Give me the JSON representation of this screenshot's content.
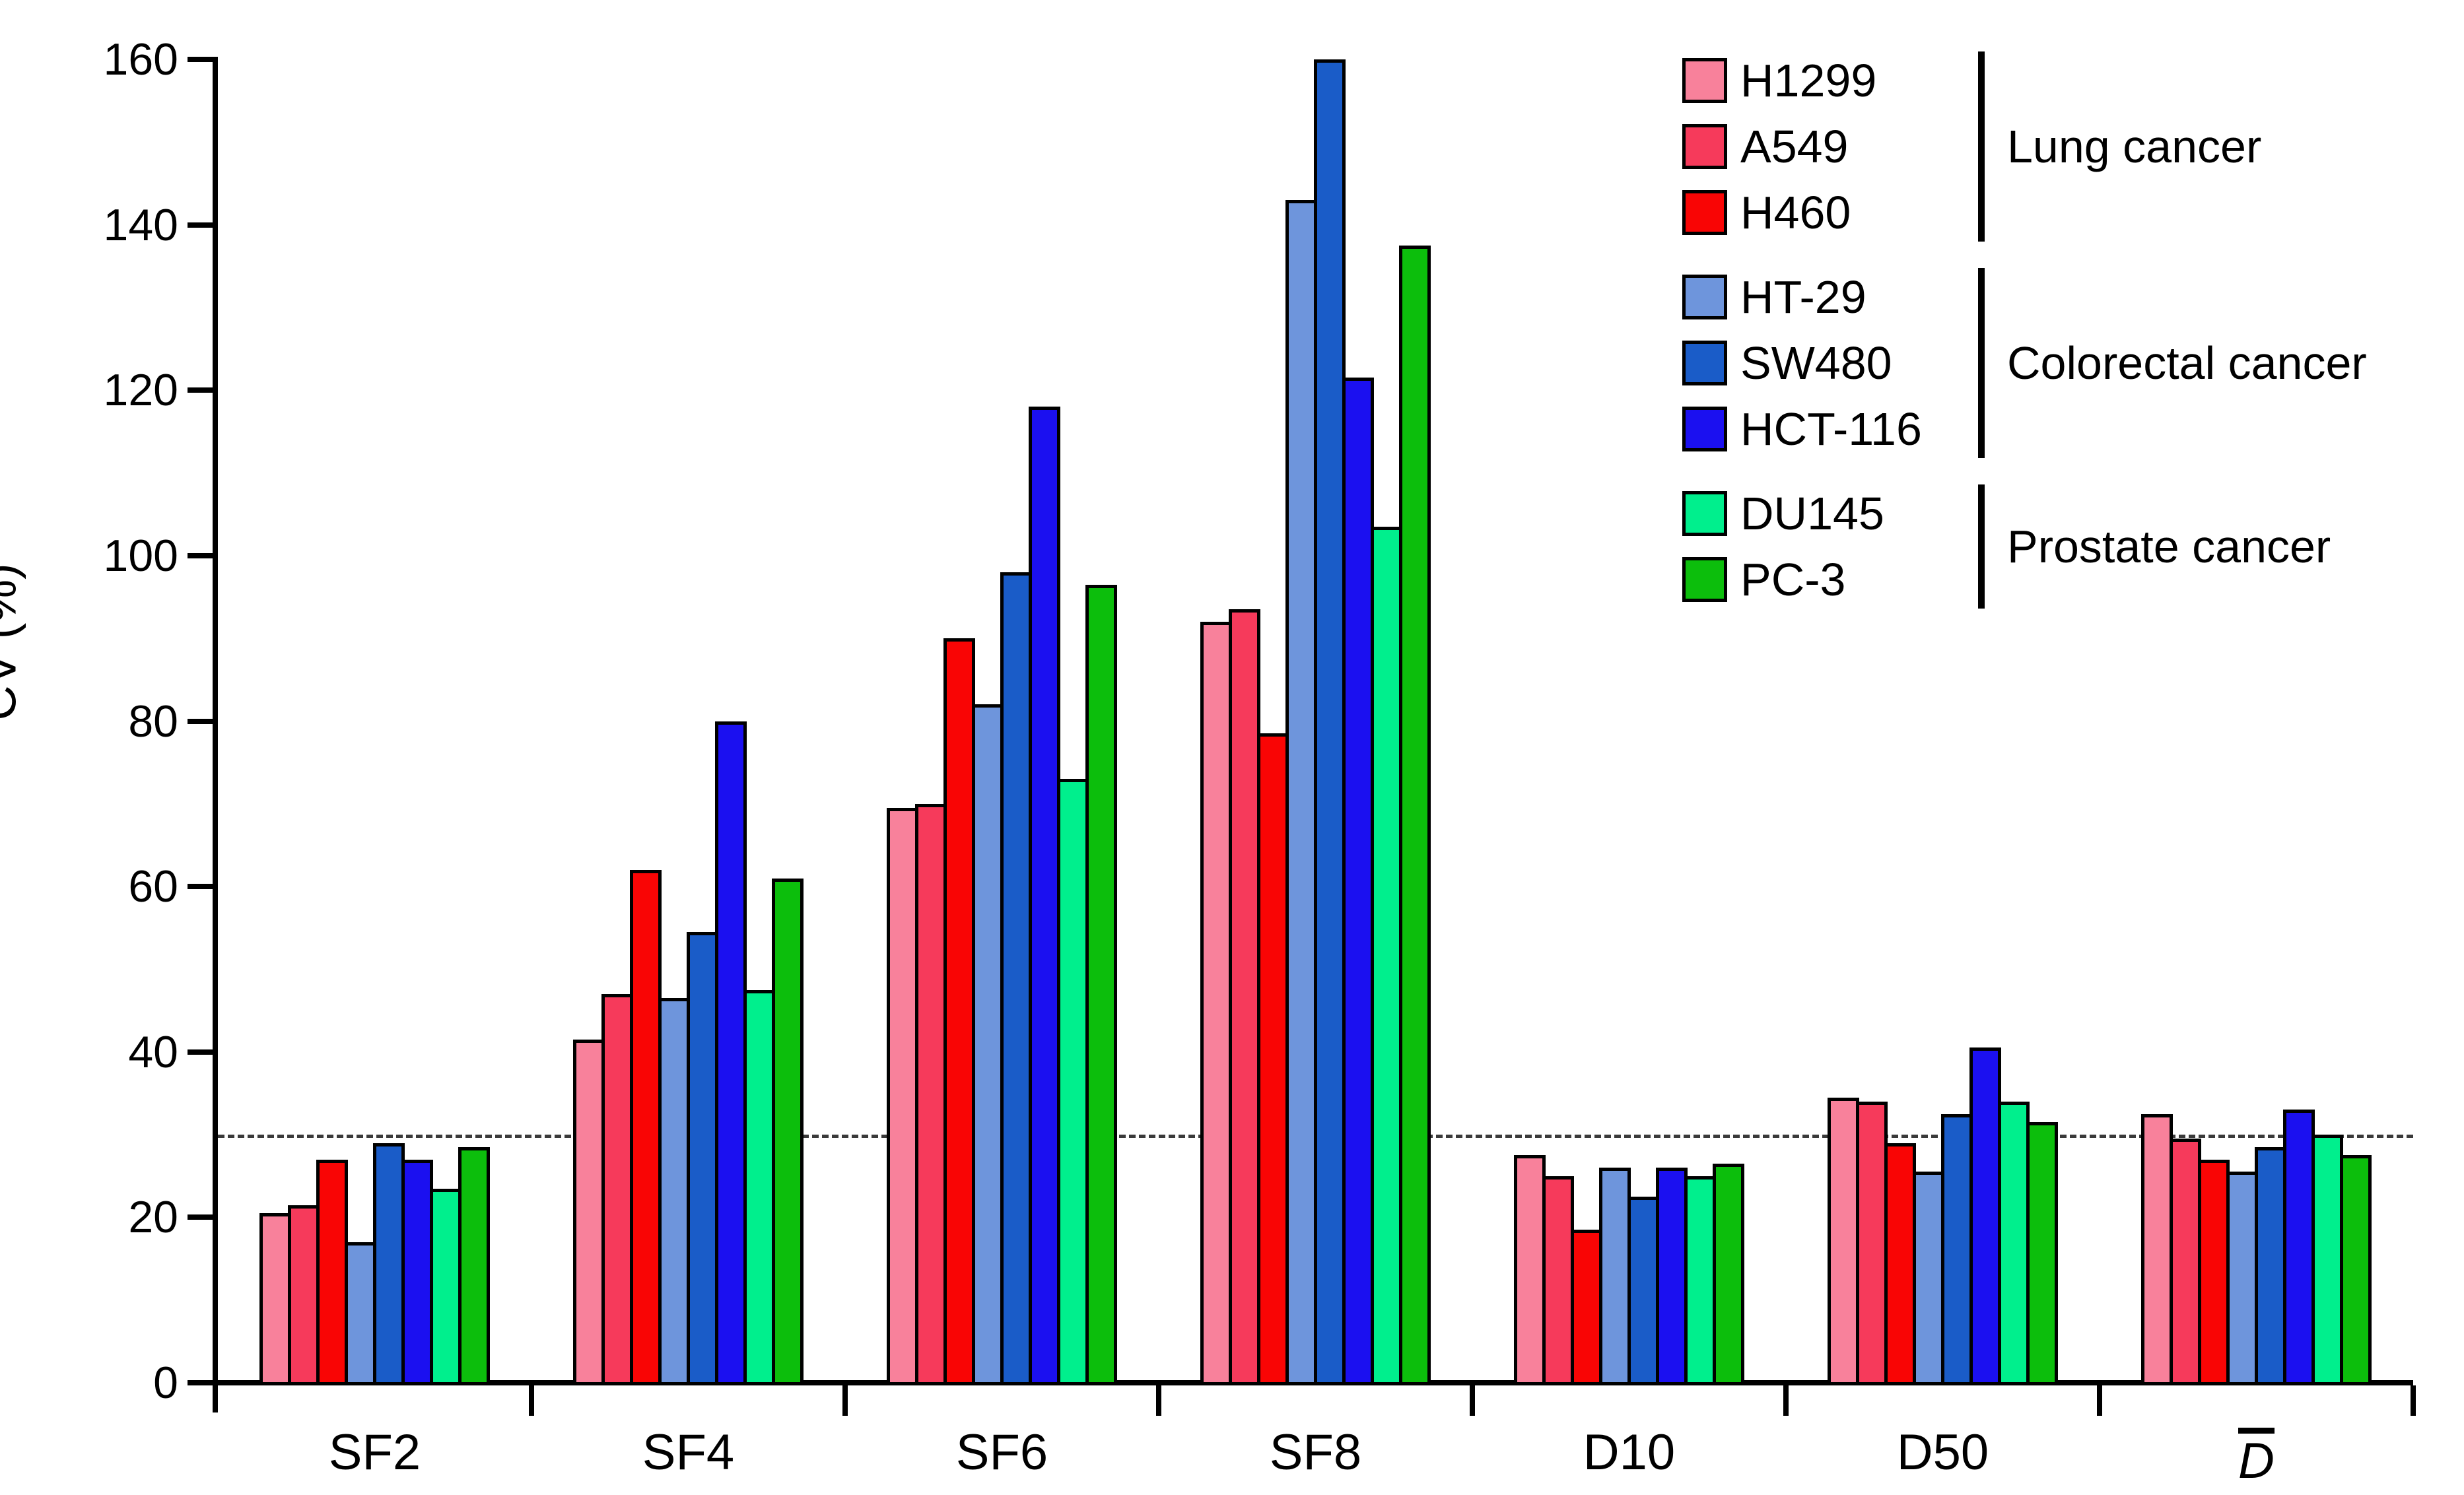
{
  "chart_data": {
    "type": "bar",
    "title": "",
    "ylabel": "CV (%)",
    "ylim": [
      0,
      160
    ],
    "yticks": [
      0,
      20,
      40,
      60,
      80,
      100,
      120,
      140,
      160
    ],
    "reference_line": 30,
    "grid": "off",
    "legend_position": "top-right",
    "categories": [
      {
        "label": "SF2"
      },
      {
        "label": "SF4"
      },
      {
        "label": "SF6"
      },
      {
        "label": "SF8"
      },
      {
        "label": "D10"
      },
      {
        "label": "D50"
      },
      {
        "label": "D",
        "italic": true,
        "overline": true
      }
    ],
    "series": [
      {
        "name": "H1299",
        "color": "#F8819B",
        "values": [
          20.5,
          41.5,
          69.5,
          92,
          27.5,
          34.5,
          32.5
        ]
      },
      {
        "name": "A549",
        "color": "#F63A5B",
        "values": [
          21.5,
          47,
          70,
          93.5,
          25,
          34,
          29.5
        ]
      },
      {
        "name": "H460",
        "color": "#F90505",
        "values": [
          27,
          62,
          90,
          78.5,
          18.5,
          29,
          27
        ]
      },
      {
        "name": "HT-29",
        "color": "#6E95DC",
        "values": [
          17,
          46.5,
          82,
          143,
          26,
          25.5,
          25.5
        ]
      },
      {
        "name": "SW480",
        "color": "#1A5CC8",
        "values": [
          29,
          54.5,
          98,
          160,
          22.5,
          32.5,
          28.5
        ]
      },
      {
        "name": "HCT-116",
        "color": "#1B10F0",
        "values": [
          27,
          80,
          118,
          121.5,
          26,
          40.5,
          33
        ]
      },
      {
        "name": "DU145",
        "color": "#00EF8D",
        "values": [
          23.5,
          47.5,
          73,
          103.5,
          25,
          34,
          30
        ]
      },
      {
        "name": "PC-3",
        "color": "#0CBE0C",
        "values": [
          28.5,
          61,
          96.5,
          137.5,
          26.5,
          31.5,
          27.5
        ]
      }
    ],
    "legend_groups": [
      {
        "label": "Lung cancer",
        "series": [
          "H1299",
          "A549",
          "H460"
        ]
      },
      {
        "label": "Colorectal cancer",
        "series": [
          "HT-29",
          "SW480",
          "HCT-116"
        ]
      },
      {
        "label": "Prostate cancer",
        "series": [
          "DU145",
          "PC-3"
        ]
      }
    ]
  }
}
